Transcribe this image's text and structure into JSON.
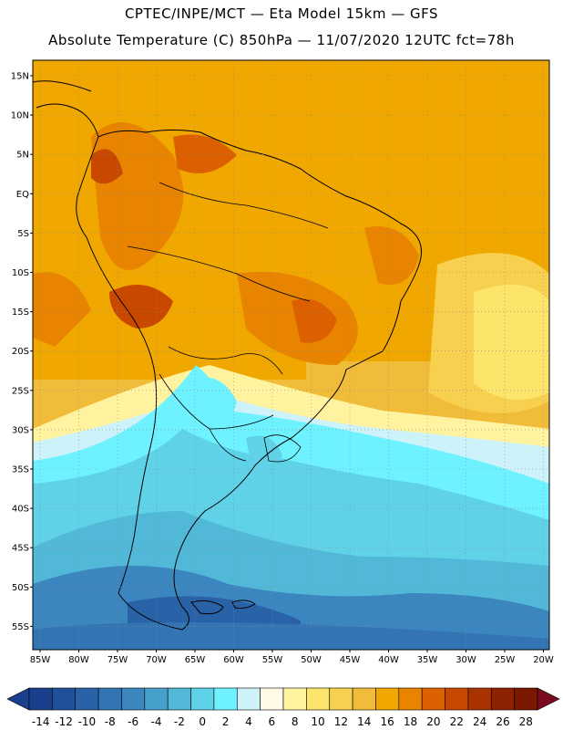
{
  "header": {
    "line1": "CPTEC/INPE/MCT —  Eta Model 15km — GFS",
    "line2": "Absolute Temperature (C) 850hPa — 11/07/2020 12UTC fct=78h"
  },
  "map": {
    "lat_labels": [
      "15N",
      "10N",
      "5N",
      "EQ",
      "5S",
      "10S",
      "15S",
      "20S",
      "25S",
      "30S",
      "35S",
      "40S",
      "45S",
      "50S",
      "55S"
    ],
    "lon_labels": [
      "85W",
      "80W",
      "75W",
      "70W",
      "65W",
      "60W",
      "55W",
      "50W",
      "45W",
      "40W",
      "35W",
      "30W",
      "25W",
      "20W"
    ],
    "grid": "dotted"
  },
  "colorbar": {
    "labels": [
      "-14",
      "-12",
      "-10",
      "-8",
      "-6",
      "-4",
      "-2",
      "0",
      "2",
      "4",
      "6",
      "8",
      "10",
      "12",
      "14",
      "16",
      "18",
      "20",
      "22",
      "24",
      "26",
      "28"
    ],
    "colors": [
      "#1a3f8c",
      "#21509a",
      "#2a62a8",
      "#3374b5",
      "#3c86c0",
      "#46a0cc",
      "#52b8d8",
      "#5fd2e8",
      "#6ef2ff",
      "#cdf2fa",
      "#fff9e6",
      "#fff3a0",
      "#fde46a",
      "#f7d050",
      "#f0bc3a",
      "#f0a800",
      "#e88400",
      "#dc6000",
      "#c84800",
      "#a83200",
      "#8c2200",
      "#7a1800"
    ],
    "left_arrow_color": "#1a3f8c",
    "right_arrow_color": "#7a0a1e"
  }
}
